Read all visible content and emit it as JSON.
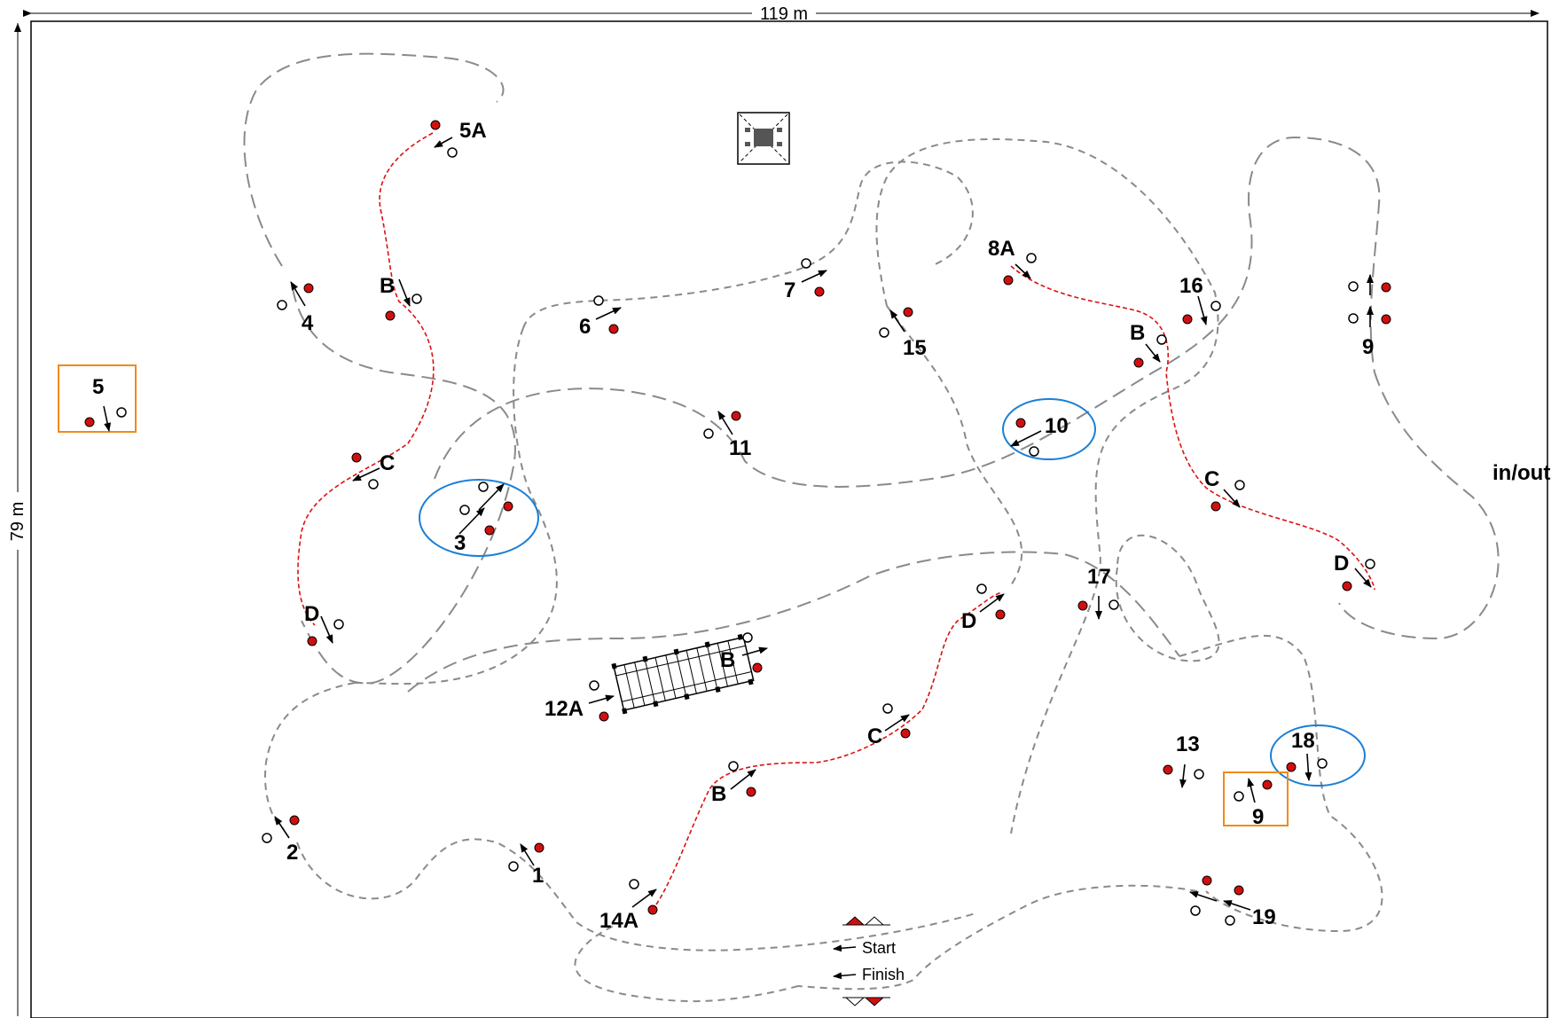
{
  "dimensions": {
    "width_label": "119 m",
    "height_label": "79 m"
  },
  "entrance_label": "in/out",
  "start_label": "Start",
  "finish_label": "Finish",
  "colors": {
    "path": "#8a8a8a",
    "red_marker": "#d01010",
    "red_line": "#dd1010",
    "blue_ring": "#1a7fd6",
    "orange_box": "#f08a1a"
  },
  "obstacles": [
    {
      "id": "ob-5a",
      "label": "5A"
    },
    {
      "id": "ob-5b",
      "label": "B"
    },
    {
      "id": "ob-5c",
      "label": "C"
    },
    {
      "id": "ob-5d",
      "label": "D"
    },
    {
      "id": "ob-4",
      "label": "4"
    },
    {
      "id": "ob-5box",
      "label": "5"
    },
    {
      "id": "ob-3",
      "label": "3"
    },
    {
      "id": "ob-6",
      "label": "6"
    },
    {
      "id": "ob-7",
      "label": "7"
    },
    {
      "id": "ob-11",
      "label": "11"
    },
    {
      "id": "ob-15",
      "label": "15"
    },
    {
      "id": "ob-8a",
      "label": "8A"
    },
    {
      "id": "ob-8b",
      "label": "B"
    },
    {
      "id": "ob-8c",
      "label": "C"
    },
    {
      "id": "ob-8d",
      "label": "D"
    },
    {
      "id": "ob-10",
      "label": "10"
    },
    {
      "id": "ob-16",
      "label": "16"
    },
    {
      "id": "ob-9a",
      "label": "9"
    },
    {
      "id": "ob-17",
      "label": "17"
    },
    {
      "id": "ob-12a",
      "label": "12A"
    },
    {
      "id": "ob-12b",
      "label": "B"
    },
    {
      "id": "ob-14d",
      "label": "D"
    },
    {
      "id": "ob-14c",
      "label": "C"
    },
    {
      "id": "ob-14b",
      "label": "B"
    },
    {
      "id": "ob-14a",
      "label": "14A"
    },
    {
      "id": "ob-13",
      "label": "13"
    },
    {
      "id": "ob-18",
      "label": "18"
    },
    {
      "id": "ob-9box",
      "label": "9"
    },
    {
      "id": "ob-2",
      "label": "2"
    },
    {
      "id": "ob-1",
      "label": "1"
    },
    {
      "id": "ob-19",
      "label": "19"
    }
  ]
}
